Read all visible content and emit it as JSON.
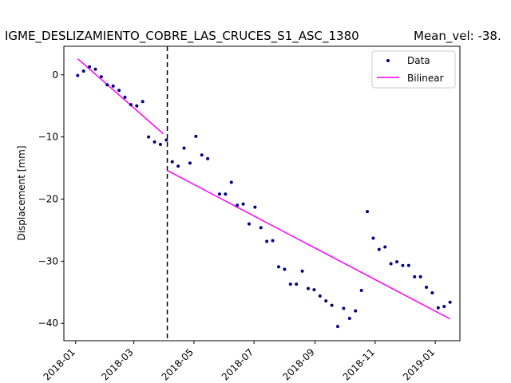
{
  "chart_data": {
    "type": "scatter",
    "title": "IGME_DESLIZAMIENTO_COBRE_LAS_CRUCES_S1_ASC_1380",
    "subtitle": "Mean_vel: -38.",
    "xlabel": "",
    "ylabel": "Displacement [mm]",
    "x_ticks": [
      "2018-01",
      "2018-03",
      "2018-05",
      "2018-07",
      "2018-09",
      "2018-11",
      "2019-01"
    ],
    "x_tick_dates": [
      "2018-01-01",
      "2018-03-01",
      "2018-05-01",
      "2018-07-01",
      "2018-09-01",
      "2018-11-01",
      "2019-01-01"
    ],
    "y_ticks": [
      0,
      -10,
      -20,
      -30,
      -40
    ],
    "xlim": [
      "2017-12-20",
      "2019-01-26"
    ],
    "ylim": [
      -42.8,
      4.6
    ],
    "grid": false,
    "legend_position": "top-right",
    "breakpoint_date": "2018-04-04",
    "colors": {
      "data": "#000080",
      "bilinear": "#ff00ff",
      "breakpoint": "#000000"
    },
    "series": [
      {
        "name": "Data",
        "style": "points",
        "points": [
          [
            "2018-01-03",
            -0.1
          ],
          [
            "2018-01-09",
            0.6
          ],
          [
            "2018-01-15",
            1.3
          ],
          [
            "2018-01-21",
            0.9
          ],
          [
            "2018-01-27",
            -0.3
          ],
          [
            "2018-02-02",
            -1.6
          ],
          [
            "2018-02-08",
            -1.8
          ],
          [
            "2018-02-14",
            -2.5
          ],
          [
            "2018-02-20",
            -3.6
          ],
          [
            "2018-02-26",
            -4.8
          ],
          [
            "2018-03-04",
            -5.0
          ],
          [
            "2018-03-10",
            -4.3
          ],
          [
            "2018-03-16",
            -10.0
          ],
          [
            "2018-03-22",
            -10.8
          ],
          [
            "2018-03-28",
            -11.2
          ],
          [
            "2018-04-03",
            -10.5
          ],
          [
            "2018-04-09",
            -14.0
          ],
          [
            "2018-04-15",
            -14.7
          ],
          [
            "2018-04-21",
            -11.8
          ],
          [
            "2018-04-27",
            -14.2
          ],
          [
            "2018-05-03",
            -9.9
          ],
          [
            "2018-05-09",
            -12.9
          ],
          [
            "2018-05-15",
            -13.5
          ],
          [
            "2018-05-27",
            -19.2
          ],
          [
            "2018-06-02",
            -19.2
          ],
          [
            "2018-06-08",
            -17.3
          ],
          [
            "2018-06-14",
            -21.0
          ],
          [
            "2018-06-20",
            -20.8
          ],
          [
            "2018-06-26",
            -24.0
          ],
          [
            "2018-07-02",
            -21.3
          ],
          [
            "2018-07-08",
            -24.6
          ],
          [
            "2018-07-14",
            -26.8
          ],
          [
            "2018-07-20",
            -26.7
          ],
          [
            "2018-07-26",
            -30.9
          ],
          [
            "2018-08-01",
            -31.3
          ],
          [
            "2018-08-07",
            -33.7
          ],
          [
            "2018-08-13",
            -33.7
          ],
          [
            "2018-08-19",
            -31.6
          ],
          [
            "2018-08-25",
            -34.4
          ],
          [
            "2018-08-31",
            -34.6
          ],
          [
            "2018-09-06",
            -35.6
          ],
          [
            "2018-09-12",
            -36.4
          ],
          [
            "2018-09-18",
            -37.1
          ],
          [
            "2018-09-24",
            -40.5
          ],
          [
            "2018-09-30",
            -37.6
          ],
          [
            "2018-10-06",
            -39.2
          ],
          [
            "2018-10-12",
            -38.0
          ],
          [
            "2018-10-18",
            -34.7
          ],
          [
            "2018-10-24",
            -22.0
          ],
          [
            "2018-10-30",
            -26.3
          ],
          [
            "2018-11-05",
            -28.1
          ],
          [
            "2018-11-11",
            -27.7
          ],
          [
            "2018-11-17",
            -30.4
          ],
          [
            "2018-11-23",
            -30.1
          ],
          [
            "2018-11-29",
            -30.7
          ],
          [
            "2018-12-05",
            -30.7
          ],
          [
            "2018-12-11",
            -32.5
          ],
          [
            "2018-12-17",
            -32.5
          ],
          [
            "2018-12-23",
            -34.2
          ],
          [
            "2018-12-29",
            -35.1
          ],
          [
            "2019-01-04",
            -37.5
          ],
          [
            "2019-01-10",
            -37.3
          ],
          [
            "2019-01-16",
            -36.6
          ]
        ]
      },
      {
        "name": "Bilinear",
        "style": "line",
        "segments": [
          [
            [
              "2018-01-03",
              2.6
            ],
            [
              "2018-03-31",
              -9.5
            ]
          ],
          [
            "2018-04-04",
            -15.4
          ],
          [
            "2019-01-16",
            -39.3
          ]
        ]
      }
    ]
  }
}
